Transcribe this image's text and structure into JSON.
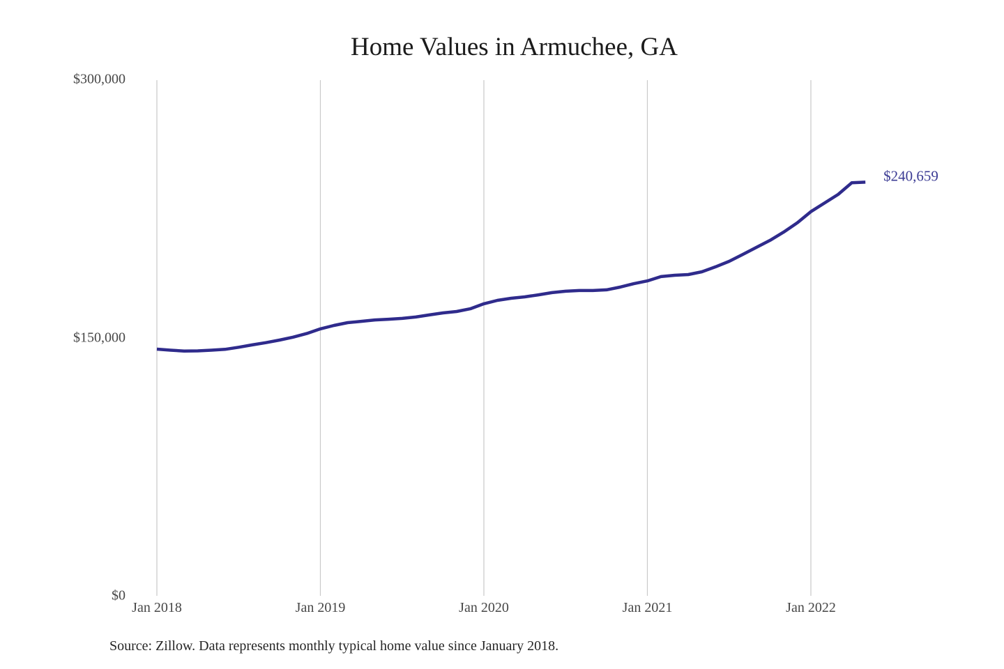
{
  "title": "Home Values in Armuchee, GA",
  "source_note": "Source: Zillow. Data represents monthly typical home value since January 2018.",
  "colors": {
    "background": "#ffffff",
    "line": "#2f2b8c",
    "end_label": "#3c3c94",
    "gridline": "#c9c9c9",
    "title": "#1b1b1b",
    "axis_label": "#474747",
    "source": "#262626"
  },
  "chart_data": {
    "type": "line",
    "title": "Home Values in Armuchee, GA",
    "series_name": "Typical home value (monthly, Zillow)",
    "xlabel": "",
    "ylabel": "",
    "ylim": [
      0,
      300000
    ],
    "grid": "vertical-year-lines-only",
    "legend": "none",
    "end_label": "$240,659",
    "final_value": 240659,
    "y_ticks": [
      {
        "value": 300000,
        "label": "$300,000"
      },
      {
        "value": 150000,
        "label": "$150,000"
      },
      {
        "value": 0,
        "label": "$0"
      }
    ],
    "x_ticks": [
      {
        "month_index": 0,
        "label": "Jan 2018"
      },
      {
        "month_index": 12,
        "label": "Jan 2019"
      },
      {
        "month_index": 24,
        "label": "Jan 2020"
      },
      {
        "month_index": 36,
        "label": "Jan 2021"
      },
      {
        "month_index": 48,
        "label": "Jan 2022"
      }
    ],
    "x": [
      "Jan 2018",
      "Feb 2018",
      "Mar 2018",
      "Apr 2018",
      "May 2018",
      "Jun 2018",
      "Jul 2018",
      "Aug 2018",
      "Sep 2018",
      "Oct 2018",
      "Nov 2018",
      "Dec 2018",
      "Jan 2019",
      "Feb 2019",
      "Mar 2019",
      "Apr 2019",
      "May 2019",
      "Jun 2019",
      "Jul 2019",
      "Aug 2019",
      "Sep 2019",
      "Oct 2019",
      "Nov 2019",
      "Dec 2019",
      "Jan 2020",
      "Feb 2020",
      "Mar 2020",
      "Apr 2020",
      "May 2020",
      "Jun 2020",
      "Jul 2020",
      "Aug 2020",
      "Sep 2020",
      "Oct 2020",
      "Nov 2020",
      "Dec 2020",
      "Jan 2021",
      "Feb 2021",
      "Mar 2021",
      "Apr 2021",
      "May 2021",
      "Jun 2021",
      "Jul 2021",
      "Aug 2021",
      "Sep 2021",
      "Oct 2021",
      "Nov 2021",
      "Dec 2021",
      "Jan 2022",
      "Feb 2022",
      "Mar 2022",
      "Apr 2022",
      "May 2022"
    ],
    "values": [
      143500,
      142900,
      142400,
      142500,
      142900,
      143400,
      144600,
      146000,
      147300,
      148800,
      150500,
      152600,
      155300,
      157300,
      158900,
      159700,
      160500,
      160900,
      161400,
      162200,
      163400,
      164600,
      165400,
      167000,
      169900,
      171900,
      173100,
      173900,
      175100,
      176400,
      177200,
      177600,
      177600,
      178000,
      179600,
      181600,
      183200,
      185700,
      186500,
      186900,
      188500,
      191400,
      194600,
      198600,
      202700,
      206800,
      211600,
      217000,
      223500,
      228500,
      233500,
      240300,
      240659
    ]
  },
  "layout_note": "Static chart image: no interactive controls visible"
}
